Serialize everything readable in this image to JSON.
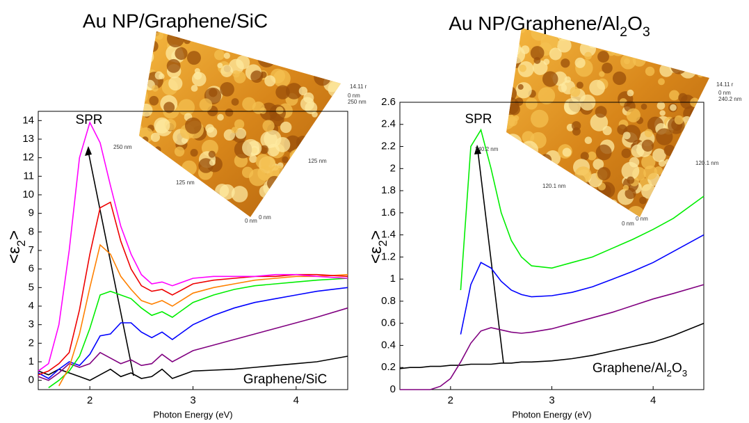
{
  "chart_data": [
    {
      "type": "line",
      "title": "Au NP/Graphene/SiC",
      "ylabel": [
        "<ε",
        "2",
        ">"
      ],
      "xlabel": "Photon Energy (eV)",
      "annotation": "SPR",
      "inset_labels": [
        "14.11 r",
        "0 nm",
        "250 nm",
        "250 nm",
        "125 nm",
        "125 nm",
        "0 nm",
        "0 nm"
      ],
      "xlim": [
        1.5,
        4.5
      ],
      "ylim": [
        -0.5,
        14.5
      ],
      "xticks": [
        2,
        3,
        4
      ],
      "yticks": [
        0,
        1,
        2,
        3,
        4,
        5,
        6,
        7,
        8,
        9,
        10,
        11,
        12,
        13,
        14
      ],
      "x": [
        1.5,
        1.6,
        1.7,
        1.8,
        1.9,
        2.0,
        2.1,
        2.2,
        2.3,
        2.4,
        2.5,
        2.6,
        2.7,
        2.8,
        3.0,
        3.2,
        3.4,
        3.6,
        3.8,
        4.0,
        4.2,
        4.5
      ],
      "series": [
        {
          "name": "Graphene/SiC",
          "color": "#000000",
          "values": [
            0.5,
            0.3,
            0.6,
            0.4,
            0.2,
            0.0,
            0.3,
            0.6,
            0.2,
            0.4,
            0.1,
            0.2,
            0.6,
            0.1,
            0.5,
            0.55,
            0.6,
            0.7,
            0.8,
            0.9,
            1.0,
            1.3
          ]
        },
        {
          "color": "#800080",
          "values": [
            0.2,
            0.0,
            0.4,
            0.9,
            0.7,
            0.9,
            1.5,
            1.2,
            0.9,
            1.1,
            0.8,
            0.9,
            1.4,
            1.0,
            1.6,
            1.9,
            2.2,
            2.5,
            2.8,
            3.1,
            3.4,
            3.9
          ]
        },
        {
          "color": "#0000ff",
          "values": [
            0.4,
            0.1,
            0.6,
            1.0,
            0.8,
            1.4,
            2.4,
            2.5,
            3.1,
            3.1,
            2.6,
            2.3,
            2.6,
            2.2,
            3.0,
            3.5,
            3.9,
            4.2,
            4.4,
            4.6,
            4.8,
            5.0
          ]
        },
        {
          "color": "#00ee00",
          "values": [
            null,
            -0.4,
            0.0,
            0.5,
            1.3,
            2.8,
            4.6,
            4.8,
            4.6,
            4.4,
            3.9,
            3.5,
            3.7,
            3.4,
            4.2,
            4.6,
            4.9,
            5.1,
            5.2,
            5.3,
            5.4,
            5.5
          ]
        },
        {
          "color": "#ff8000",
          "values": [
            null,
            null,
            -0.3,
            0.7,
            2.5,
            5.0,
            7.3,
            6.8,
            5.6,
            4.9,
            4.3,
            4.1,
            4.3,
            4.0,
            4.7,
            5.0,
            5.2,
            5.4,
            5.5,
            5.6,
            5.6,
            5.7
          ]
        },
        {
          "color": "#ee0000",
          "values": [
            0.3,
            0.5,
            0.9,
            1.5,
            3.8,
            6.8,
            9.3,
            9.6,
            7.5,
            6.0,
            5.1,
            4.8,
            4.9,
            4.6,
            5.2,
            5.4,
            5.5,
            5.6,
            5.6,
            5.7,
            5.7,
            5.6
          ]
        },
        {
          "color": "#ff00ff",
          "values": [
            0.5,
            0.9,
            3.0,
            7.0,
            12.0,
            13.9,
            12.8,
            10.5,
            8.3,
            6.8,
            5.7,
            5.2,
            5.3,
            5.1,
            5.5,
            5.6,
            5.6,
            5.6,
            5.7,
            5.7,
            5.6,
            5.5
          ]
        }
      ]
    },
    {
      "type": "line",
      "title": [
        "Au NP/Graphene/Al",
        "2",
        "O",
        "3"
      ],
      "ylabel": [
        "<ε",
        "2",
        ">"
      ],
      "xlabel": "Photon Energy (eV)",
      "annotation": "SPR",
      "inset_labels": [
        "14.11 r",
        "0 nm",
        "240.2 nm",
        "240.2 nm",
        "120.1 nm",
        "120.1 nm",
        "0 nm",
        "0 nm"
      ],
      "xlim": [
        1.5,
        4.5
      ],
      "ylim": [
        0,
        2.6
      ],
      "xticks": [
        2,
        3,
        4
      ],
      "yticks": [
        0,
        0.2,
        0.4,
        0.6,
        0.8,
        1,
        1.2,
        1.4,
        1.6,
        1.8,
        2,
        2.2,
        2.4,
        2.6
      ],
      "x": [
        1.5,
        1.6,
        1.7,
        1.8,
        1.9,
        2.0,
        2.1,
        2.2,
        2.3,
        2.4,
        2.5,
        2.6,
        2.7,
        2.8,
        3.0,
        3.2,
        3.4,
        3.6,
        3.8,
        4.0,
        4.2,
        4.5
      ],
      "series": [
        {
          "name": [
            "Graphene/Al",
            "2",
            "O",
            "3"
          ],
          "color": "#000000",
          "values": [
            0.19,
            0.2,
            0.2,
            0.21,
            0.21,
            0.22,
            0.22,
            0.23,
            0.23,
            0.23,
            0.24,
            0.24,
            0.25,
            0.25,
            0.26,
            0.28,
            0.31,
            0.35,
            0.39,
            0.43,
            0.49,
            0.6
          ]
        },
        {
          "color": "#800080",
          "values": [
            0.0,
            0.0,
            0.0,
            0.0,
            0.03,
            0.1,
            0.25,
            0.42,
            0.53,
            0.56,
            0.54,
            0.52,
            0.51,
            0.52,
            0.55,
            0.6,
            0.65,
            0.7,
            0.76,
            0.82,
            0.87,
            0.95
          ]
        },
        {
          "color": "#0000ff",
          "values": [
            null,
            null,
            null,
            null,
            null,
            null,
            0.5,
            0.95,
            1.15,
            1.1,
            0.98,
            0.9,
            0.86,
            0.84,
            0.85,
            0.88,
            0.93,
            1.0,
            1.07,
            1.15,
            1.25,
            1.4
          ]
        },
        {
          "color": "#00ee00",
          "values": [
            null,
            null,
            null,
            null,
            null,
            null,
            0.9,
            2.2,
            2.35,
            2.0,
            1.6,
            1.35,
            1.2,
            1.12,
            1.1,
            1.15,
            1.2,
            1.28,
            1.36,
            1.45,
            1.55,
            1.75
          ]
        }
      ]
    }
  ]
}
